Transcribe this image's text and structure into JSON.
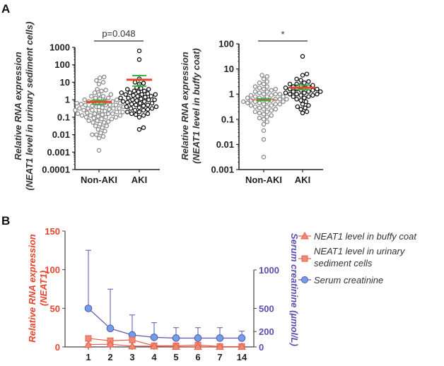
{
  "chart_data": [
    {
      "id": "A1",
      "panel_label": "A",
      "type": "scatter",
      "subtype": "beeswarm",
      "yscale": "log",
      "ylim": [
        0.0001,
        1000
      ],
      "ylabel": [
        "Relative RNA expression",
        "(NEAT1 level in urinary sediment cells)"
      ],
      "yticks": [
        "0.0001",
        "0.001",
        "0.01",
        "0.1",
        "1",
        "10",
        "100",
        "1000"
      ],
      "categories": [
        "Non-AKI",
        "AKI"
      ],
      "significance": "p=0.048",
      "groups": [
        {
          "name": "Non-AKI",
          "color": "#8a8a8a",
          "mean": 0.75,
          "sem": [
            0.55,
            0.95
          ],
          "log10_values": [
            1.3,
            1.25,
            1.1,
            1.0,
            0.9,
            0.6,
            0.55,
            0.5,
            0.4,
            0.3,
            0.3,
            0.2,
            0.2,
            0.1,
            0.1,
            0.05,
            0,
            0,
            -0.05,
            -0.1,
            -0.1,
            -0.1,
            -0.15,
            -0.2,
            -0.2,
            -0.2,
            -0.25,
            -0.3,
            -0.3,
            -0.3,
            -0.3,
            -0.35,
            -0.4,
            -0.4,
            -0.4,
            -0.4,
            -0.45,
            -0.5,
            -0.5,
            -0.5,
            -0.5,
            -0.55,
            -0.6,
            -0.6,
            -0.6,
            -0.6,
            -0.65,
            -0.7,
            -0.7,
            -0.7,
            -0.7,
            -0.75,
            -0.8,
            -0.8,
            -0.8,
            -0.8,
            -0.85,
            -0.9,
            -0.9,
            -0.9,
            -0.95,
            -1.0,
            -1.0,
            -1.0,
            -1.05,
            -1.1,
            -1.1,
            -1.2,
            -1.2,
            -1.25,
            -1.3,
            -1.3,
            -1.4,
            -1.5,
            -1.5,
            -1.6,
            -1.7,
            -1.8,
            -1.9,
            -2.0,
            -2.0,
            -2.1,
            -2.2,
            -2.9
          ]
        },
        {
          "name": "AKI",
          "color": "#111111",
          "mean": 14,
          "sem": [
            6,
            24
          ],
          "log10_values": [
            2.8,
            2.3,
            1.2,
            1.0,
            0.95,
            0.9,
            0.7,
            0.65,
            0.6,
            0.6,
            0.5,
            0.5,
            0.45,
            0.4,
            0.4,
            0.35,
            0.3,
            0.3,
            0.3,
            0.25,
            0.2,
            0.2,
            0.15,
            0.1,
            0.1,
            0.05,
            0,
            0,
            0,
            -0.05,
            -0.1,
            -0.1,
            -0.15,
            -0.2,
            -0.2,
            -0.25,
            -0.3,
            -0.3,
            -0.35,
            -0.4,
            -0.4,
            -0.45,
            -0.5,
            -0.5,
            -0.55,
            -0.6,
            -0.6,
            -0.7,
            -0.7,
            -0.8,
            -0.8,
            -0.85,
            -0.9,
            -1.0,
            -1.6,
            -1.7
          ]
        }
      ]
    },
    {
      "id": "A2",
      "type": "scatter",
      "subtype": "beeswarm",
      "yscale": "log",
      "ylim": [
        0.001,
        100
      ],
      "ylabel": [
        "Relative RNA expression",
        "(NEAT1 level in buffy coat)"
      ],
      "yticks": [
        "0.001",
        "0.01",
        "0.1",
        "1",
        "10",
        "100"
      ],
      "categories": [
        "Non-AKI",
        "AKI"
      ],
      "significance": "*",
      "groups": [
        {
          "name": "Non-AKI",
          "color": "#8a8a8a",
          "mean": 0.6,
          "sem": [
            0.55,
            0.65
          ],
          "log10_values": [
            0.75,
            0.7,
            0.6,
            0.5,
            0.45,
            0.4,
            0.3,
            0.3,
            0.25,
            0.2,
            0.2,
            0.15,
            0.1,
            0.1,
            0.05,
            0,
            0,
            0,
            -0.05,
            -0.05,
            -0.1,
            -0.1,
            -0.1,
            -0.15,
            -0.15,
            -0.2,
            -0.2,
            -0.2,
            -0.2,
            -0.25,
            -0.25,
            -0.3,
            -0.3,
            -0.3,
            -0.3,
            -0.35,
            -0.35,
            -0.4,
            -0.4,
            -0.4,
            -0.45,
            -0.45,
            -0.5,
            -0.5,
            -0.55,
            -0.6,
            -0.6,
            -0.65,
            -0.7,
            -0.7,
            -0.75,
            -0.8,
            -0.85,
            -0.9,
            -0.95,
            -1.0,
            -1.1,
            -1.2,
            -1.45,
            -1.8,
            -2.5
          ]
        },
        {
          "name": "AKI",
          "color": "#111111",
          "mean": 1.8,
          "sem": [
            1.5,
            2.3
          ],
          "log10_values": [
            1.5,
            0.8,
            0.75,
            0.6,
            0.55,
            0.5,
            0.45,
            0.4,
            0.4,
            0.35,
            0.35,
            0.3,
            0.3,
            0.25,
            0.25,
            0.2,
            0.2,
            0.2,
            0.15,
            0.15,
            0.1,
            0.1,
            0.1,
            0.05,
            0.05,
            0,
            0,
            0,
            -0.05,
            -0.05,
            -0.1,
            -0.1,
            -0.15,
            -0.2,
            -0.25,
            -0.3,
            -0.4,
            -0.45,
            -0.5,
            -0.55,
            -0.6,
            -0.7,
            -0.75
          ]
        }
      ]
    },
    {
      "id": "B",
      "panel_label": "B",
      "type": "line",
      "x": [
        "1",
        "2",
        "3",
        "4",
        "5",
        "6",
        "7",
        "14"
      ],
      "ylabel_left": [
        "Relative RNA expression",
        "(NEAT1)"
      ],
      "ylim_left": [
        0,
        150
      ],
      "yticks_left": [
        "0",
        "50",
        "100",
        "150"
      ],
      "ylabel_right": "Serum creatinine (µmol/L)",
      "ylim_right": [
        0,
        1000
      ],
      "yticks_right": [
        "0",
        "200",
        "500",
        "1000"
      ],
      "series": [
        {
          "name": "NEAT1 level in buffy coat",
          "axis": "left",
          "marker": "triangle",
          "color": "#e8604a",
          "values": [
            3,
            3.5,
            1,
            1,
            0.5,
            0.3,
            0.3,
            0.3
          ],
          "err_upper": [
            4,
            4.5,
            1.5,
            1.5,
            1,
            0.6,
            0.6,
            0.6
          ]
        },
        {
          "name": "NEAT1 level in urinary sediment cells",
          "name_lines": [
            "NEAT1 level in urinary",
            "sediment cells"
          ],
          "axis": "left",
          "marker": "square",
          "color": "#e8604a",
          "values": [
            11,
            8,
            9,
            1.5,
            1.5,
            2.5,
            0.5,
            0.5
          ],
          "err_upper": [
            13,
            9,
            10,
            2,
            2,
            3,
            1,
            1
          ]
        },
        {
          "name": "Serum creatinine",
          "axis": "right",
          "marker": "circle",
          "color": "#6f9fe6",
          "line_color": "#5a55b0",
          "values": [
            500,
            240,
            155,
            125,
            115,
            115,
            115,
            115
          ],
          "err_upper": [
            1255,
            750,
            415,
            315,
            250,
            250,
            250,
            205
          ]
        }
      ]
    }
  ],
  "colors": {
    "mean": "#e8452c",
    "sem": "#3cb04a",
    "red_axis": "#e8452c",
    "blue_axis": "#5a4fb0"
  }
}
